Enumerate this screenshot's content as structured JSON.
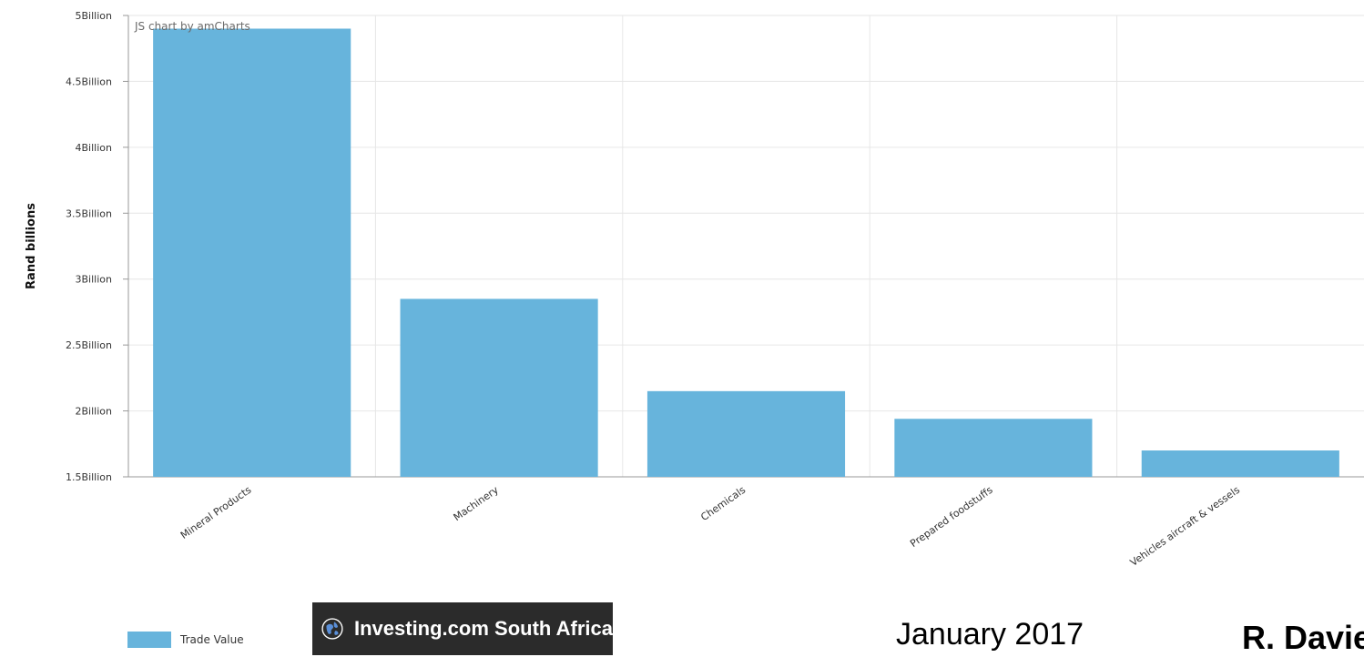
{
  "chart_data": {
    "type": "bar",
    "credit": "JS chart by amCharts",
    "ylabel": "Rand billions",
    "xlabel": "",
    "categories": [
      "Mineral Products",
      "Machinery",
      "Chemicals",
      "Prepared foodstuffs",
      "Vehicles aircraft & vessels"
    ],
    "series": [
      {
        "name": "Trade Value",
        "values": [
          4.9,
          2.85,
          2.15,
          1.94,
          1.7
        ]
      }
    ],
    "ylim": [
      1.5,
      5
    ],
    "yticks": [
      1.5,
      2,
      2.5,
      3,
      3.5,
      4,
      4.5,
      5
    ],
    "ytick_labels": [
      "1.5Billion",
      "2Billion",
      "2.5Billion",
      "3Billion",
      "3.5Billion",
      "4Billion",
      "4.5Billion",
      "5Billion"
    ],
    "grid": true,
    "bar_color": "#67b4dc",
    "legend_position": "bottom-left"
  },
  "legend": {
    "label": "Trade Value"
  },
  "badge": {
    "text": "Investing.com South Africa",
    "icon": "globe-icon"
  },
  "footer": {
    "date": "January 2017",
    "author": "R. Davies"
  }
}
